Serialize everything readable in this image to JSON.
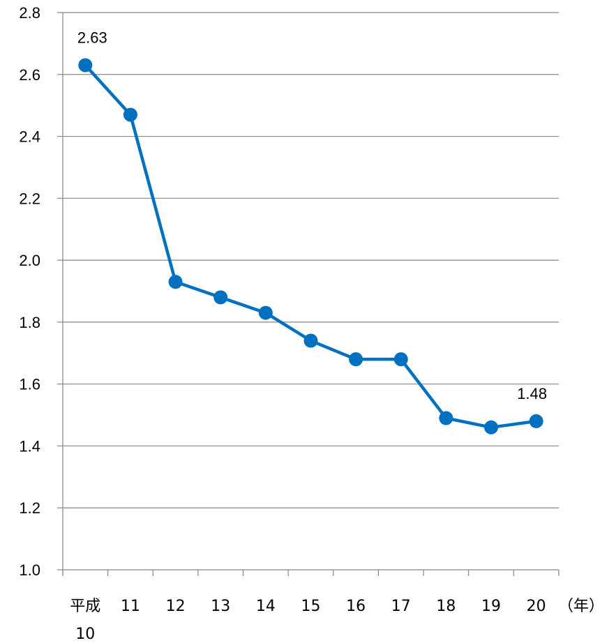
{
  "chart_data": {
    "type": "line",
    "categories": [
      "平成\n10",
      "11",
      "12",
      "13",
      "14",
      "15",
      "16",
      "17",
      "18",
      "19",
      "20"
    ],
    "series": [
      {
        "values": [
          2.63,
          2.47,
          1.93,
          1.88,
          1.83,
          1.74,
          1.68,
          1.68,
          1.49,
          1.46,
          1.48
        ]
      }
    ],
    "data_labels": [
      {
        "index": 0,
        "text": "2.63"
      },
      {
        "index": 10,
        "text": "1.48"
      }
    ],
    "y_ticks": [
      "1.0",
      "1.2",
      "1.4",
      "1.6",
      "1.8",
      "2.0",
      "2.2",
      "2.4",
      "2.6",
      "2.8"
    ],
    "ylim": [
      1.0,
      2.8
    ],
    "x_unit": "（年）",
    "grid": "horizontal",
    "line_color": "#0070C0",
    "grid_color": "#868686"
  }
}
